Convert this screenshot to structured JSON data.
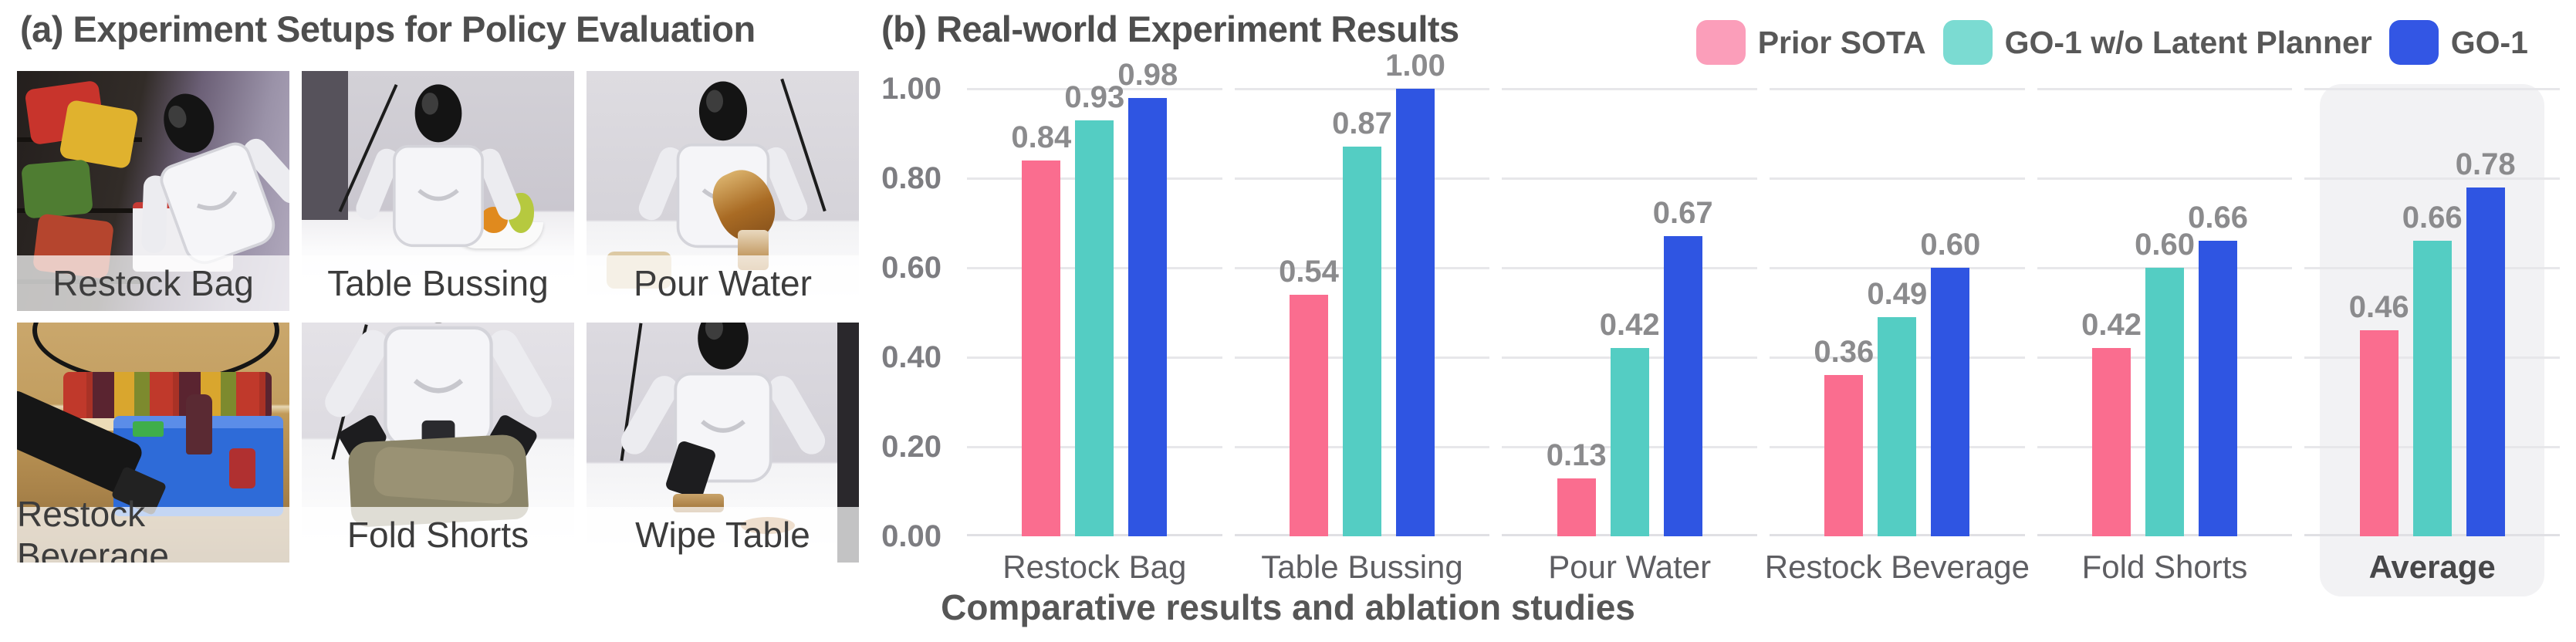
{
  "figure": {
    "panel_a": {
      "title": "(a) Experiment Setups for Policy Evaluation",
      "setups": [
        {
          "label": "Restock Bag"
        },
        {
          "label": "Table Bussing"
        },
        {
          "label": "Pour Water"
        },
        {
          "label": "Restock Beverage"
        },
        {
          "label": "Fold Shorts"
        },
        {
          "label": "Wipe Table"
        }
      ]
    },
    "panel_b": {
      "title": "(b) Real-world Experiment Results",
      "caption": "Comparative results and ablation studies",
      "legend": [
        {
          "label": "Prior SOTA",
          "swatch": "#FB9EBA"
        },
        {
          "label": "GO-1 w/o Latent Planner",
          "swatch": "#7BDBD2"
        },
        {
          "label": "GO-1",
          "swatch": "#3356E4"
        }
      ]
    }
  },
  "chart_data": {
    "type": "bar",
    "title": "(b) Real-world Experiment Results",
    "categories": [
      "Restock Bag",
      "Table Bussing",
      "Pour Water",
      "Restock Beverage",
      "Fold Shorts",
      "Average"
    ],
    "series": [
      {
        "name": "Prior SOTA",
        "color": "#FA6D8F",
        "values": [
          0.84,
          0.54,
          0.13,
          0.36,
          0.42,
          0.46
        ]
      },
      {
        "name": "GO-1 w/o Latent Planner",
        "color": "#54CDC3",
        "values": [
          0.93,
          0.87,
          0.42,
          0.49,
          0.6,
          0.66
        ]
      },
      {
        "name": "GO-1",
        "color": "#2F55E2",
        "values": [
          0.98,
          1.0,
          0.67,
          0.6,
          0.66,
          0.78
        ]
      }
    ],
    "ylim": [
      0,
      1.0
    ],
    "yticks": [
      "0.00",
      "0.20",
      "0.40",
      "0.60",
      "0.80",
      "1.00"
    ],
    "grid": true,
    "legend_position": "top-right",
    "highlight_category": "Average",
    "value_label_decimals": 2,
    "xlabel": "",
    "ylabel": ""
  }
}
